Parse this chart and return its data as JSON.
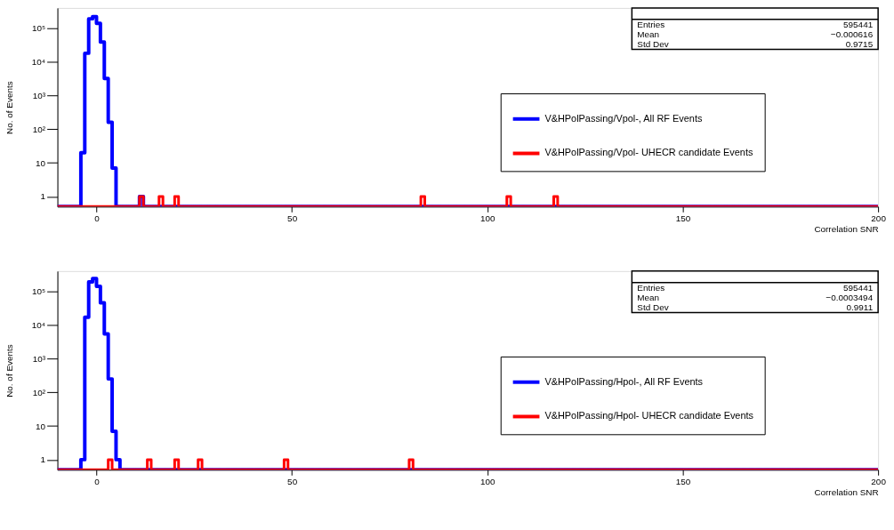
{
  "chart_data": [
    {
      "type": "histogram",
      "xlabel": "Correlation SNR",
      "ylabel": "No. of Events",
      "log": "y",
      "grid": false,
      "legend": "right",
      "line_style": "solid",
      "bins": [
        -10,
        -4,
        -3,
        -2,
        -1,
        0,
        1,
        2,
        3,
        4,
        5,
        11,
        12,
        16,
        17,
        20,
        21,
        83,
        84,
        105,
        106,
        117,
        118,
        200
      ],
      "series": [
        {
          "name": "V&HPolPassing/Vpol-, All RF Events",
          "color": "#0000ff",
          "values": [
            null,
            20,
            18000,
            190000,
            220000,
            140000,
            39000,
            3200,
            160,
            7,
            null,
            1,
            null,
            null,
            null,
            null,
            null,
            null,
            null,
            null,
            null,
            null,
            null
          ]
        },
        {
          "name": "V&HPolPassing/Vpol- UHECR candidate Events",
          "color": "#ff0000",
          "values": [
            null,
            null,
            null,
            null,
            null,
            null,
            null,
            null,
            null,
            null,
            null,
            1,
            null,
            1,
            null,
            1,
            null,
            1,
            null,
            1,
            null,
            1,
            null
          ]
        }
      ],
      "xlim": [
        -10,
        200
      ],
      "xticks": [
        0,
        50,
        100,
        150,
        200
      ],
      "ylim": [
        0.5,
        400000
      ],
      "yticks": [
        1,
        10,
        {
          "value": 100,
          "label": "10²"
        },
        {
          "value": 1000,
          "label": "10³"
        },
        {
          "value": 10000,
          "label": "10⁴"
        },
        {
          "value": 100000,
          "label": "10⁵"
        }
      ],
      "annotations": [
        "Entries",
        "595441",
        "Mean",
        "−0.000616",
        "Std Dev",
        "0.9715"
      ]
    },
    {
      "type": "histogram",
      "xlabel": "Correlation SNR",
      "ylabel": "No. of Events",
      "log": "y",
      "grid": false,
      "legend": "right",
      "line_style": "solid",
      "bins": [
        -10,
        -4,
        -3,
        -2,
        -1,
        0,
        1,
        2,
        3,
        4,
        5,
        6,
        13,
        14,
        20,
        21,
        26,
        27,
        48,
        49,
        80,
        81,
        200
      ],
      "series": [
        {
          "name": "V&HPolPassing/Hpol-, All RF Events",
          "color": "#0000ff",
          "values": [
            null,
            1,
            17000,
            190000,
            240000,
            140000,
            46000,
            5400,
            250,
            7,
            1,
            null,
            null,
            null,
            null,
            null,
            null,
            null,
            null,
            null,
            null,
            null
          ]
        },
        {
          "name": "V&HPolPassing/Hpol- UHECR candidate Events",
          "color": "#ff0000",
          "values": [
            null,
            null,
            null,
            null,
            null,
            null,
            null,
            null,
            1,
            null,
            null,
            null,
            1,
            null,
            1,
            null,
            1,
            null,
            1,
            null,
            1,
            null
          ]
        }
      ],
      "xlim": [
        -10,
        200
      ],
      "xticks": [
        0,
        50,
        100,
        150,
        200
      ],
      "ylim": [
        0.5,
        400000
      ],
      "yticks": [
        1,
        10,
        {
          "value": 100,
          "label": "10²"
        },
        {
          "value": 1000,
          "label": "10³"
        },
        {
          "value": 10000,
          "label": "10⁴"
        },
        {
          "value": 100000,
          "label": "10⁵"
        }
      ],
      "annotations": [
        "Entries",
        "595441",
        "Mean",
        "−0.0003494",
        "Std Dev",
        "0.9911"
      ]
    }
  ]
}
